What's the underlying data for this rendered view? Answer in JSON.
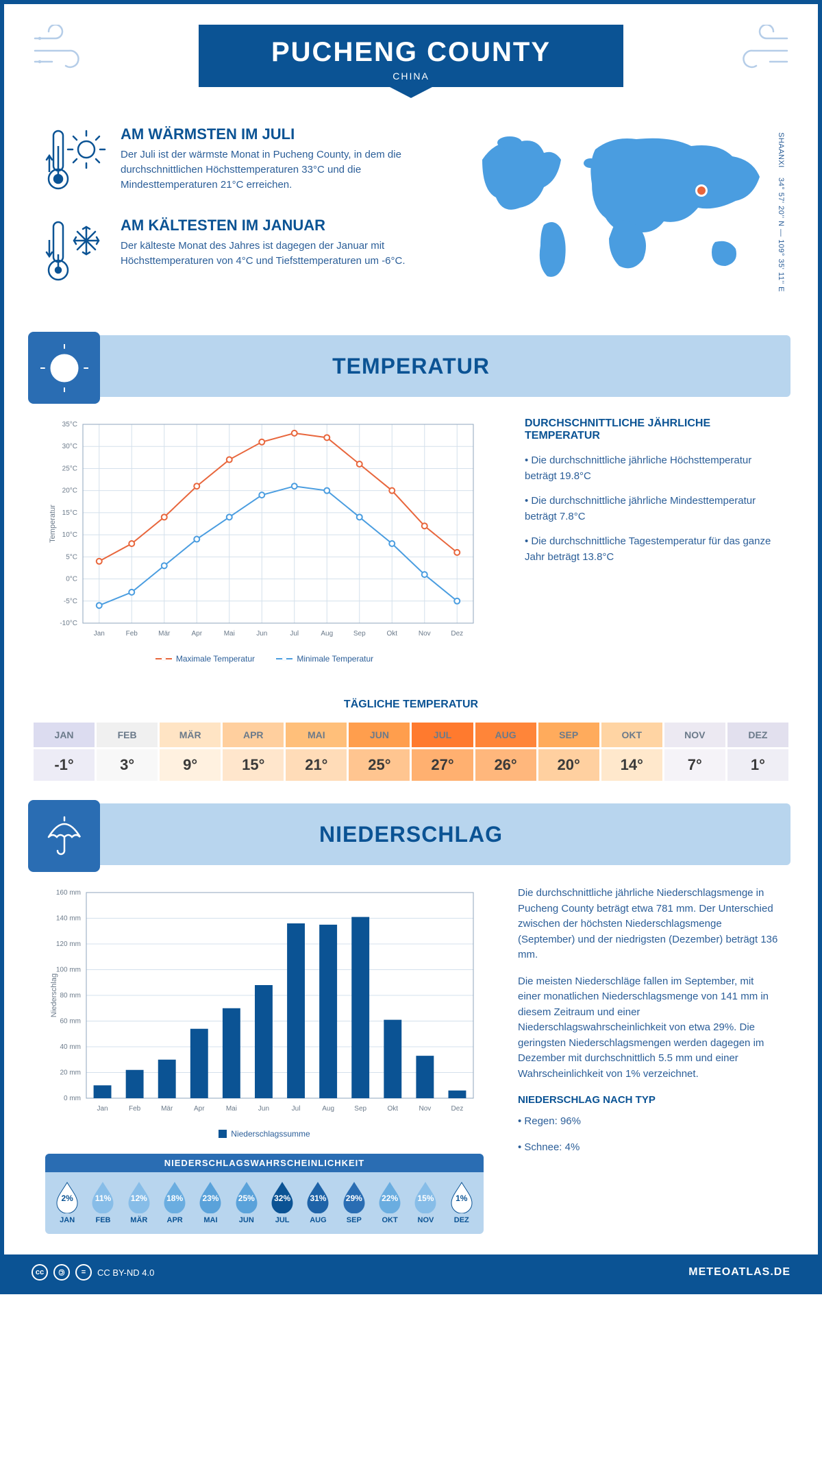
{
  "page_border_color": "#0b5394",
  "primary_color": "#0b5394",
  "banner_blue": "#b8d5ee",
  "icon_box_blue": "#2a6db3",
  "text_blue": "#2b5e98",
  "header": {
    "title": "PUCHENG COUNTY",
    "subtitle": "CHINA"
  },
  "coords": {
    "region": "SHAANXI",
    "lat": "34° 57' 20'' N",
    "lon": "109° 35' 11'' E"
  },
  "intro": {
    "warm": {
      "title": "AM WÄRMSTEN IM JULI",
      "text": "Der Juli ist der wärmste Monat in Pucheng County, in dem die durchschnittlichen Höchsttemperaturen 33°C und die Mindesttemperaturen 21°C erreichen."
    },
    "cold": {
      "title": "AM KÄLTESTEN IM JANUAR",
      "text": "Der kälteste Monat des Jahres ist dagegen der Januar mit Höchsttemperaturen von 4°C und Tiefsttemperaturen um -6°C."
    }
  },
  "months": [
    "Jan",
    "Feb",
    "Mär",
    "Apr",
    "Mai",
    "Jun",
    "Jul",
    "Aug",
    "Sep",
    "Okt",
    "Nov",
    "Dez"
  ],
  "months_upper": [
    "JAN",
    "FEB",
    "MÄR",
    "APR",
    "MAI",
    "JUN",
    "JUL",
    "AUG",
    "SEP",
    "OKT",
    "NOV",
    "DEZ"
  ],
  "temperature": {
    "section_title": "TEMPERATUR",
    "chart": {
      "type": "line",
      "ylim": [
        -10,
        35
      ],
      "ytick_step": 5,
      "y_suffix": "°C",
      "ylabel": "Temperatur",
      "grid_color": "#d4e0ec",
      "max_series": {
        "color": "#e8663c",
        "values": [
          4,
          8,
          14,
          21,
          27,
          31,
          33,
          32,
          26,
          20,
          12,
          6
        ]
      },
      "min_series": {
        "color": "#4a9de0",
        "values": [
          -6,
          -3,
          3,
          9,
          14,
          19,
          21,
          20,
          14,
          8,
          1,
          -5
        ]
      },
      "legend": {
        "max": "Maximale Temperatur",
        "min": "Minimale Temperatur"
      },
      "background": "#ffffff",
      "marker_size": 4
    },
    "info": {
      "heading": "DURCHSCHNITTLICHE JÄHRLICHE TEMPERATUR",
      "bullets": [
        "• Die durchschnittliche jährliche Höchsttemperatur beträgt 19.8°C",
        "• Die durchschnittliche jährliche Mindesttemperatur beträgt 7.8°C",
        "• Die durchschnittliche Tagestemperatur für das ganze Jahr beträgt 13.8°C"
      ]
    },
    "daily": {
      "title": "TÄGLICHE TEMPERATUR",
      "values": [
        "-1°",
        "3°",
        "9°",
        "15°",
        "21°",
        "25°",
        "27°",
        "26°",
        "20°",
        "14°",
        "7°",
        "1°"
      ],
      "header_colors": [
        "#dcdcf0",
        "#f0f0f0",
        "#ffe4c4",
        "#ffcf9e",
        "#ffbf7a",
        "#ff9e4d",
        "#ff7a2e",
        "#ff8539",
        "#ffab5c",
        "#ffd4a3",
        "#ece9f2",
        "#e2e0ee"
      ],
      "value_colors": [
        "#edecf6",
        "#f8f8f8",
        "#fff1e0",
        "#ffe6cc",
        "#ffdcb8",
        "#ffc590",
        "#ffb070",
        "#ffb77c",
        "#ffd0a0",
        "#ffe8cc",
        "#f5f3f8",
        "#efeef5"
      ]
    }
  },
  "precip": {
    "section_title": "NIEDERSCHLAG",
    "chart": {
      "type": "bar",
      "ylim": [
        0,
        160
      ],
      "ytick_step": 20,
      "y_suffix": " mm",
      "ylabel": "Niederschlag",
      "bar_color": "#0b5394",
      "grid_color": "#d4e0ec",
      "values": [
        10,
        22,
        30,
        54,
        70,
        88,
        136,
        135,
        141,
        61,
        33,
        6
      ],
      "legend": "Niederschlagssumme",
      "bar_width": 0.55
    },
    "info": {
      "p1": "Die durchschnittliche jährliche Niederschlagsmenge in Pucheng County beträgt etwa 781 mm. Der Unterschied zwischen der höchsten Niederschlagsmenge (September) und der niedrigsten (Dezember) beträgt 136 mm.",
      "p2": "Die meisten Niederschläge fallen im September, mit einer monatlichen Niederschlagsmenge von 141 mm in diesem Zeitraum und einer Niederschlagswahrscheinlichkeit von etwa 29%. Die geringsten Niederschlagsmengen werden dagegen im Dezember mit durchschnittlich 5.5 mm und einer Wahrscheinlichkeit von 1% verzeichnet.",
      "type_heading": "NIEDERSCHLAG NACH TYP",
      "type_bullets": [
        "• Regen: 96%",
        "• Schnee: 4%"
      ]
    },
    "probability": {
      "title": "NIEDERSCHLAGSWAHRSCHEINLICHKEIT",
      "values": [
        2,
        11,
        12,
        18,
        23,
        25,
        32,
        31,
        29,
        22,
        15,
        1
      ],
      "colors": [
        "#ffffff",
        "#87bde8",
        "#87bde8",
        "#6aade0",
        "#5aa2da",
        "#5aa2da",
        "#0b5394",
        "#1e63a8",
        "#2a6db3",
        "#6aade0",
        "#87bde8",
        "#ffffff"
      ],
      "text_colors": [
        "#0b5394",
        "#ffffff",
        "#ffffff",
        "#ffffff",
        "#ffffff",
        "#ffffff",
        "#ffffff",
        "#ffffff",
        "#ffffff",
        "#ffffff",
        "#ffffff",
        "#0b5394"
      ]
    }
  },
  "footer": {
    "license": "CC BY-ND 4.0",
    "brand": "METEOATLAS.DE"
  }
}
